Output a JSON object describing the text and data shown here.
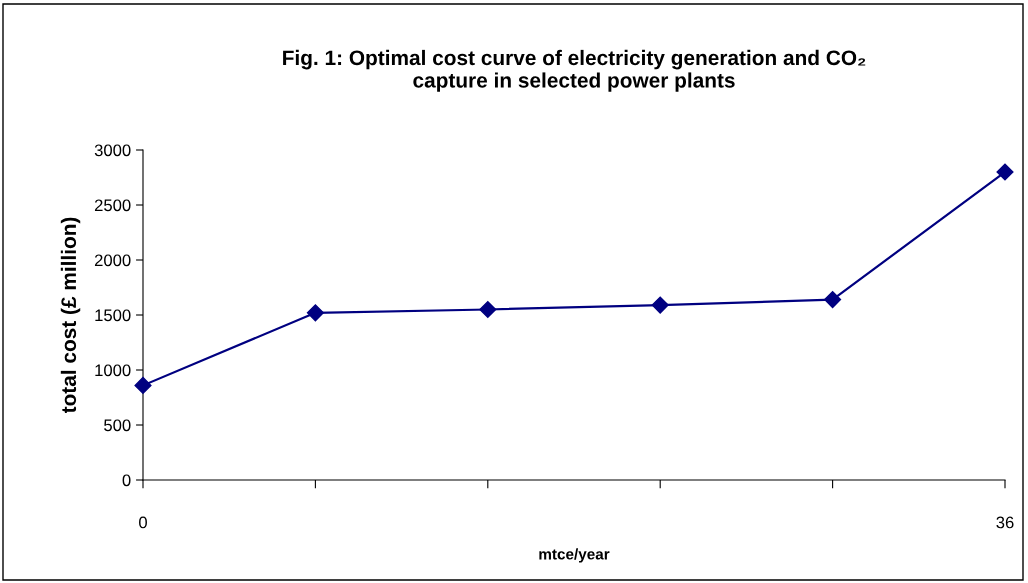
{
  "chart_data": {
    "type": "line",
    "title": "Fig. 1: Optimal cost curve of electricity generation and CO₂\ncapture in selected power plants",
    "xlabel": "mtce/year",
    "ylabel": "total cost (£ million)",
    "categories": [
      "0",
      null,
      null,
      null,
      null,
      "36"
    ],
    "series": [
      {
        "color": "#000080",
        "values": [
          860,
          1520,
          1550,
          1590,
          1640,
          2800
        ]
      }
    ],
    "ylim": [
      0,
      3000
    ],
    "yticks": [
      0,
      500,
      1000,
      1500,
      2000,
      2500,
      3000
    ],
    "grid": false,
    "marker": "diamond",
    "line_style": "solid"
  }
}
